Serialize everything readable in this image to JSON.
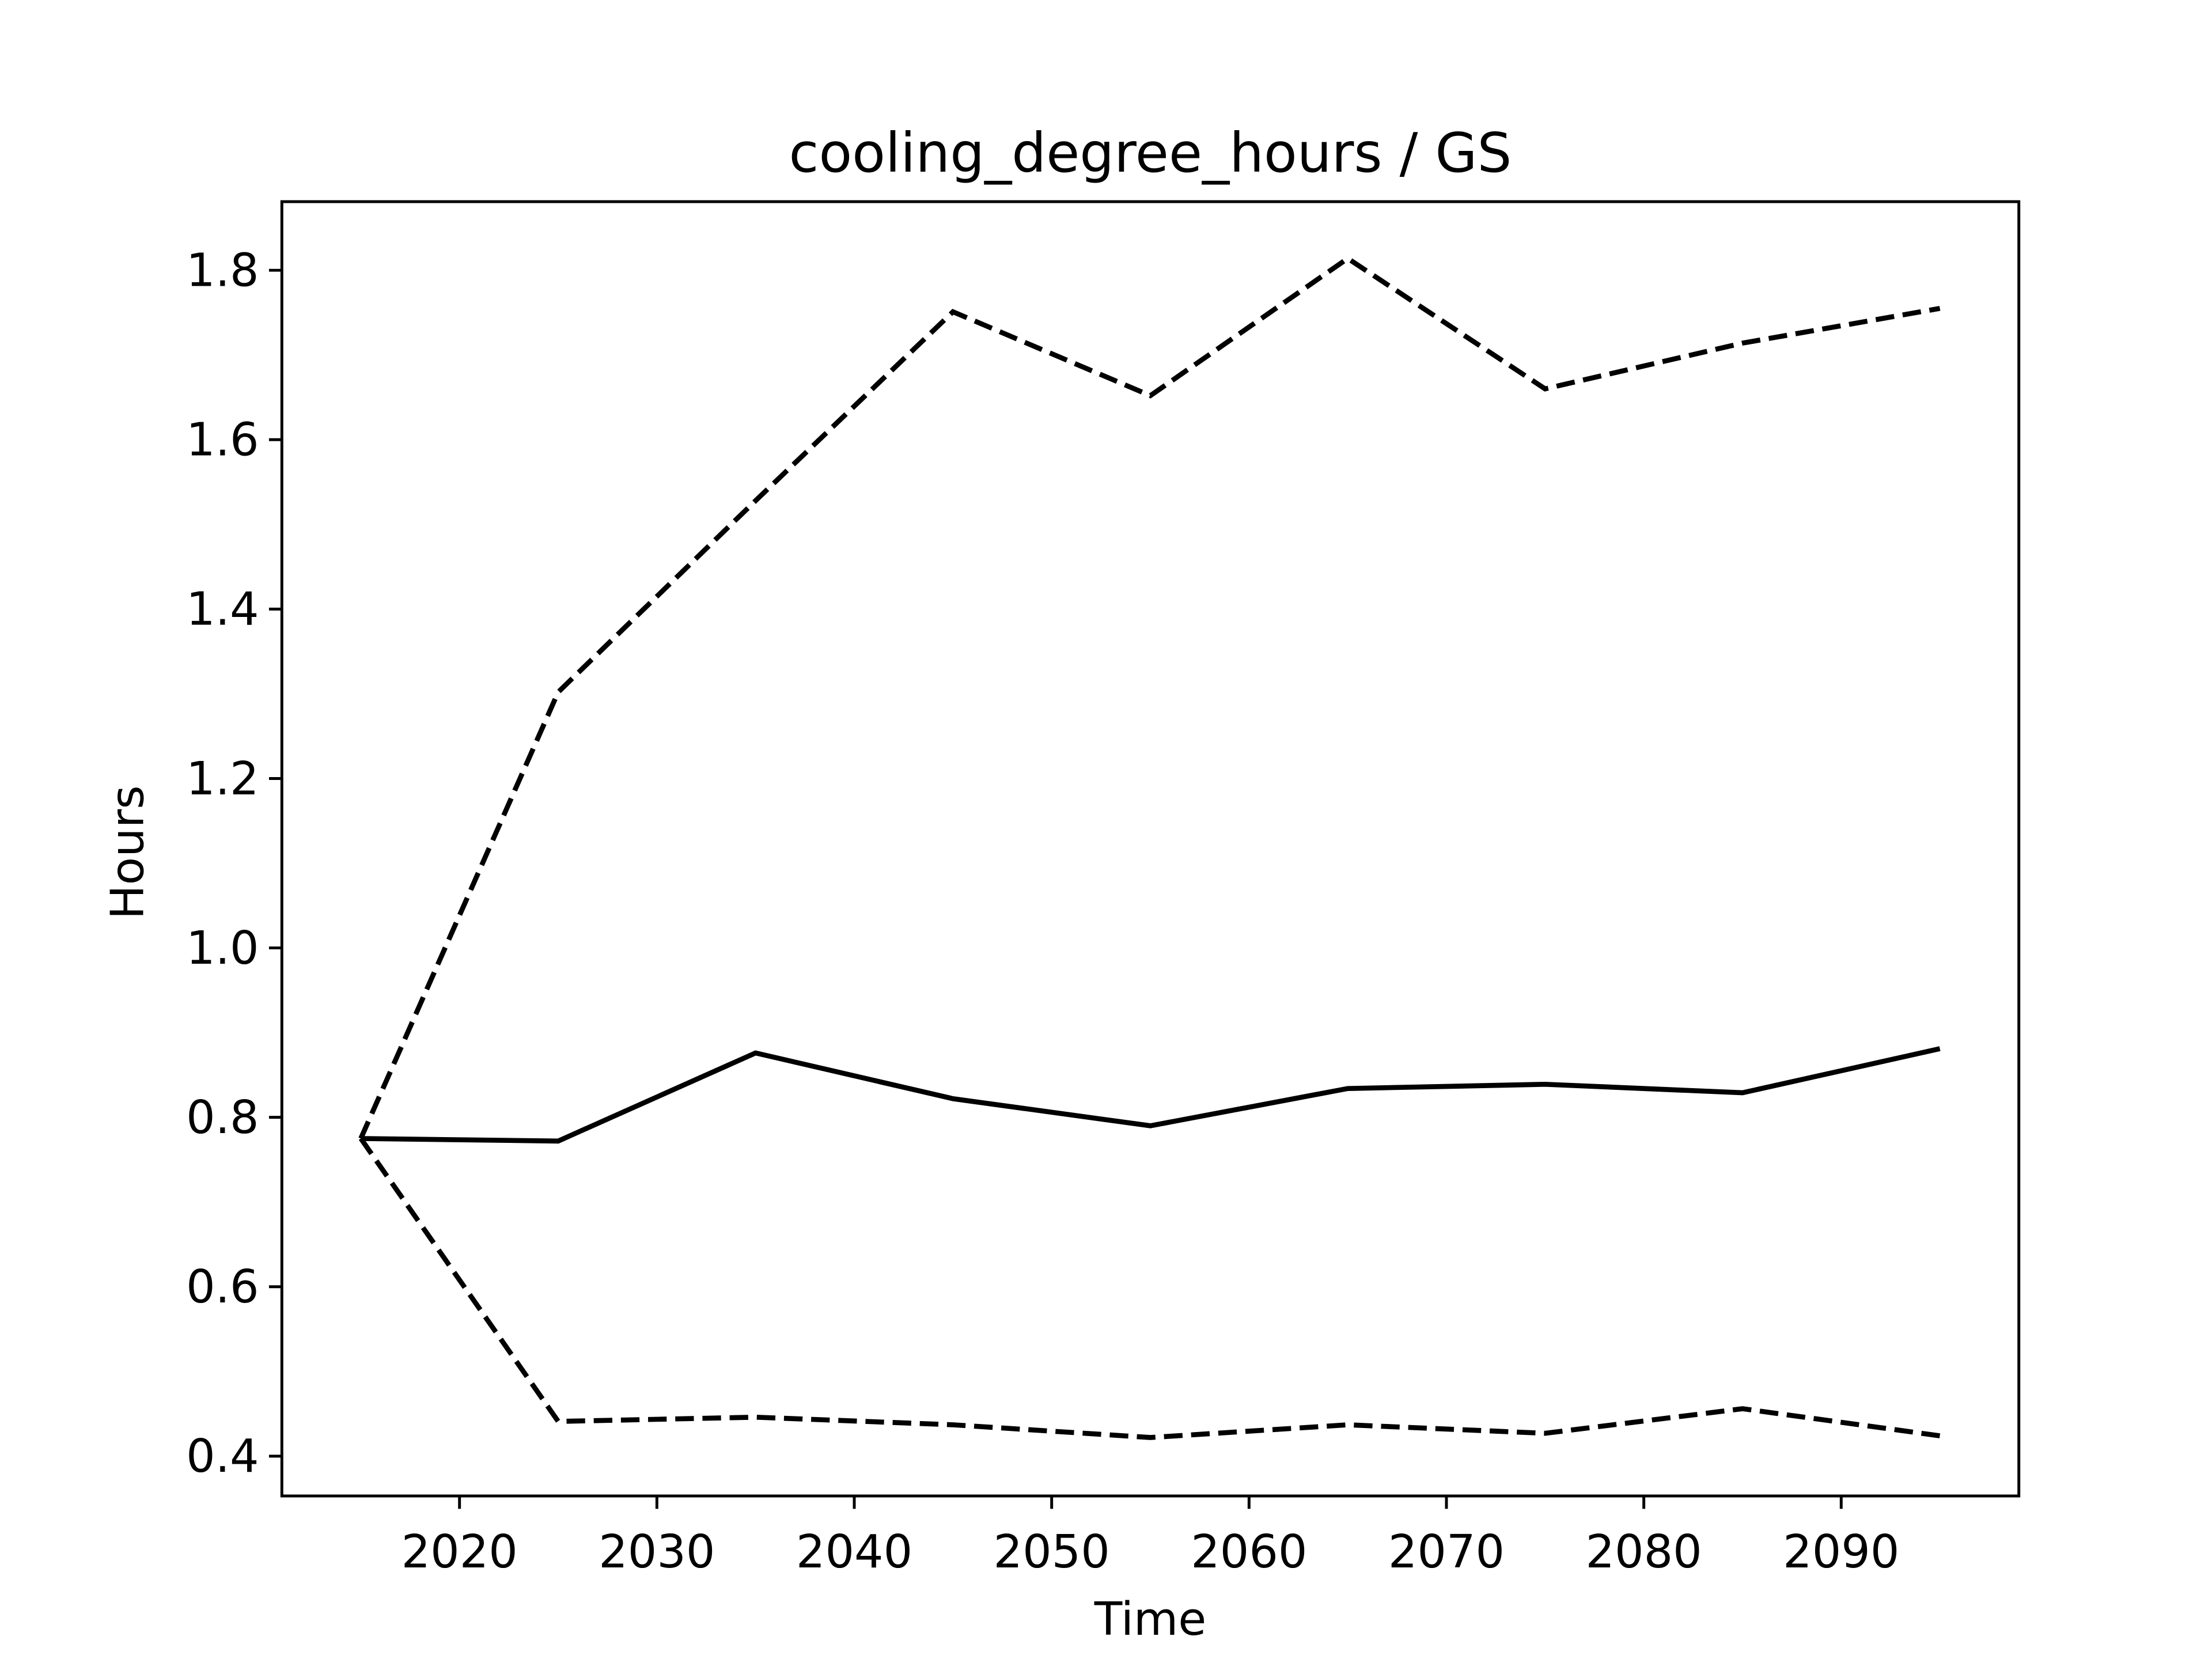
{
  "chart_data": {
    "type": "line",
    "title": "cooling_degree_hours / GS",
    "x_label": "Time",
    "y_label": "Hours",
    "x": [
      2015,
      2025,
      2035,
      2045,
      2055,
      2065,
      2075,
      2085,
      2095
    ],
    "series": [
      {
        "color": "#000000",
        "dashed": false,
        "values": [
          0.775,
          0.772,
          0.876,
          0.822,
          0.79,
          0.834,
          0.839,
          0.829,
          0.881
        ]
      },
      {
        "color": "#000000",
        "dashed": true,
        "values": [
          0.775,
          1.302,
          1.528,
          1.751,
          1.652,
          1.814,
          1.66,
          1.714,
          1.755
        ]
      },
      {
        "color": "#000000",
        "dashed": true,
        "values": [
          0.775,
          0.441,
          0.446,
          0.437,
          0.422,
          0.437,
          0.427,
          0.456,
          0.424
        ]
      }
    ],
    "xlim": [
      2011,
      2099
    ],
    "xticks": [
      2020,
      2030,
      2040,
      2050,
      2060,
      2070,
      2080,
      2090
    ],
    "ylim": [
      0.353,
      1.881
    ],
    "yticks": [
      0.4,
      0.6,
      0.8,
      {
        "value": 1,
        "label": "1.0"
      },
      1.2,
      1.4,
      1.6,
      1.8
    ],
    "grid": false
  }
}
